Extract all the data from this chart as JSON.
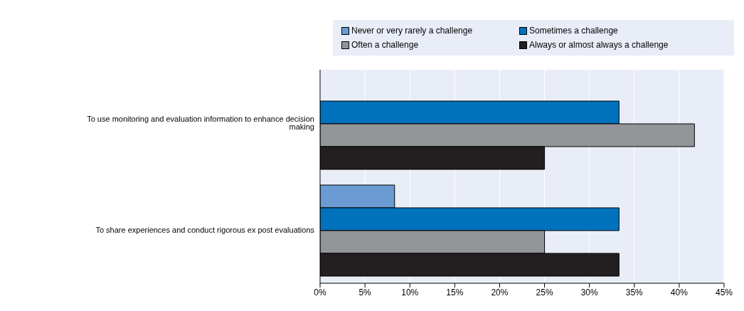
{
  "chart_data": {
    "type": "bar",
    "orientation": "horizontal",
    "categories": [
      "To use monitoring and evaluation information to enhance decision making",
      "To share experiences and conduct rigorous ex post evaluations"
    ],
    "series": [
      {
        "name": "Never or very rarely a challenge",
        "color": "#6a9bd3",
        "values": [
          0,
          8.3
        ]
      },
      {
        "name": "Sometimes a challenge",
        "color": "#0072bc",
        "values": [
          33.3,
          33.3
        ]
      },
      {
        "name": "Often a challenge",
        "color": "#939598",
        "values": [
          41.7,
          25
        ]
      },
      {
        "name": "Always or almost always a challenge",
        "color": "#231f20",
        "values": [
          25,
          33.3
        ]
      }
    ],
    "xlim": [
      0,
      45
    ],
    "xticks": [
      {
        "value": 0,
        "label": "0%"
      },
      {
        "value": 5,
        "label": "5%"
      },
      {
        "value": 10,
        "label": "10%"
      },
      {
        "value": 15,
        "label": "15%"
      },
      {
        "value": 20,
        "label": "20%"
      },
      {
        "value": 25,
        "label": "25%"
      },
      {
        "value": 30,
        "label": "30%"
      },
      {
        "value": 35,
        "label": "35%"
      },
      {
        "value": 40,
        "label": "40%"
      },
      {
        "value": 45,
        "label": "45%"
      }
    ],
    "grid": "x",
    "legend": "top"
  }
}
